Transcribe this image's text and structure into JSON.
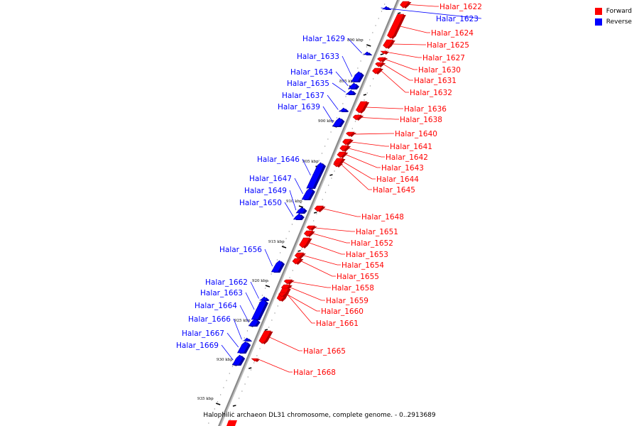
{
  "title": "Halophilic archaeon DL31 chromosome, complete genome. - 0..2913689",
  "legend": [
    {
      "label": "Forward",
      "color": "#ff0000"
    },
    {
      "label": "Reverse",
      "color": "#0000ff"
    }
  ],
  "colors": {
    "forward": "#ff0000",
    "reverse": "#0000ff",
    "axis": "#888888"
  },
  "ticks": [
    "890 kbp",
    "895 kbp",
    "900 kbp",
    "905 kbp",
    "910 kbp",
    "915 kbp",
    "920 kbp",
    "925 kbp",
    "930 kbp",
    "935 kbp"
  ],
  "genes": [
    {
      "name": "Halar_1622",
      "strand": "forward"
    },
    {
      "name": "Halar_1623",
      "strand": "reverse"
    },
    {
      "name": "Halar_1624",
      "strand": "forward"
    },
    {
      "name": "Halar_1625",
      "strand": "forward"
    },
    {
      "name": "Halar_1627",
      "strand": "forward"
    },
    {
      "name": "Halar_1629",
      "strand": "reverse"
    },
    {
      "name": "Halar_1630",
      "strand": "forward"
    },
    {
      "name": "Halar_1631",
      "strand": "forward"
    },
    {
      "name": "Halar_1632",
      "strand": "forward"
    },
    {
      "name": "Halar_1633",
      "strand": "reverse"
    },
    {
      "name": "Halar_1634",
      "strand": "reverse"
    },
    {
      "name": "Halar_1635",
      "strand": "reverse"
    },
    {
      "name": "Halar_1636",
      "strand": "forward"
    },
    {
      "name": "Halar_1637",
      "strand": "reverse"
    },
    {
      "name": "Halar_1638",
      "strand": "forward"
    },
    {
      "name": "Halar_1639",
      "strand": "reverse"
    },
    {
      "name": "Halar_1640",
      "strand": "forward"
    },
    {
      "name": "Halar_1641",
      "strand": "forward"
    },
    {
      "name": "Halar_1642",
      "strand": "forward"
    },
    {
      "name": "Halar_1643",
      "strand": "forward"
    },
    {
      "name": "Halar_1644",
      "strand": "forward"
    },
    {
      "name": "Halar_1645",
      "strand": "forward"
    },
    {
      "name": "Halar_1646",
      "strand": "reverse"
    },
    {
      "name": "Halar_1647",
      "strand": "reverse"
    },
    {
      "name": "Halar_1648",
      "strand": "forward"
    },
    {
      "name": "Halar_1649",
      "strand": "reverse"
    },
    {
      "name": "Halar_1650",
      "strand": "reverse"
    },
    {
      "name": "Halar_1651",
      "strand": "forward"
    },
    {
      "name": "Halar_1652",
      "strand": "forward"
    },
    {
      "name": "Halar_1653",
      "strand": "forward"
    },
    {
      "name": "Halar_1654",
      "strand": "forward"
    },
    {
      "name": "Halar_1655",
      "strand": "forward"
    },
    {
      "name": "Halar_1656",
      "strand": "reverse"
    },
    {
      "name": "Halar_1658",
      "strand": "forward"
    },
    {
      "name": "Halar_1659",
      "strand": "forward"
    },
    {
      "name": "Halar_1660",
      "strand": "forward"
    },
    {
      "name": "Halar_1661",
      "strand": "forward"
    },
    {
      "name": "Halar_1662",
      "strand": "reverse"
    },
    {
      "name": "Halar_1663",
      "strand": "reverse"
    },
    {
      "name": "Halar_1664",
      "strand": "reverse"
    },
    {
      "name": "Halar_1665",
      "strand": "forward"
    },
    {
      "name": "Halar_1666",
      "strand": "reverse"
    },
    {
      "name": "Halar_1667",
      "strand": "reverse"
    },
    {
      "name": "Halar_1668",
      "strand": "forward"
    },
    {
      "name": "Halar_1669",
      "strand": "reverse"
    }
  ]
}
